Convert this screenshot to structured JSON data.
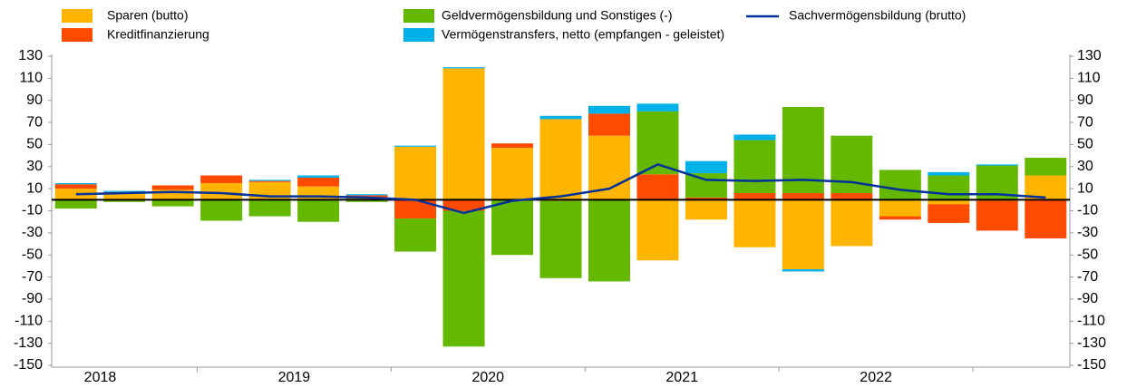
{
  "chart_data": {
    "type": "bar",
    "stacked": true,
    "categories": [
      "2018",
      null,
      null,
      null,
      "2019",
      null,
      null,
      null,
      "2020",
      null,
      null,
      null,
      "2021",
      null,
      null,
      null,
      "2022",
      null,
      null,
      null,
      null
    ],
    "series": [
      {
        "name": "Sparen (butto)",
        "color": "#ffb400",
        "values": [
          10,
          6,
          9,
          15,
          16,
          12,
          2,
          48,
          119,
          47,
          73,
          58,
          -55,
          -18,
          -43,
          -63,
          -42,
          -15,
          -4,
          -1,
          22
        ]
      },
      {
        "name": "Kreditfinanzierung",
        "color": "#ff4b00",
        "values": [
          4,
          1,
          4,
          7,
          1,
          8,
          2,
          -17,
          -10,
          4,
          -1,
          20,
          23,
          2,
          6,
          6,
          6,
          -3,
          -17,
          -27,
          -35
        ]
      },
      {
        "name": "Geldvermögensbildung und Sonstiges (-)",
        "color": "#65b800",
        "values": [
          -8,
          -2,
          -6,
          -19,
          -15,
          -20,
          -2,
          -30,
          -123,
          -50,
          -70,
          -74,
          57,
          22,
          48,
          78,
          52,
          27,
          22,
          31,
          16
        ]
      },
      {
        "name": "Vermögenstransfers, netto (empfangen - geleistet)",
        "color": "#00b1ea",
        "values": [
          1,
          1,
          0,
          0,
          1,
          2,
          1,
          1,
          1,
          0,
          3,
          7,
          7,
          11,
          5,
          -2,
          0,
          0,
          3,
          1,
          0
        ]
      },
      {
        "name": "Sachvermögensbildung (brutto)",
        "color": "#003299",
        "type": "line",
        "values": [
          5,
          6,
          7,
          6,
          3,
          3,
          2,
          0,
          -12,
          -1,
          3,
          10,
          32,
          18,
          17,
          18,
          16,
          9,
          5,
          5,
          2
        ]
      }
    ],
    "ylim": [
      -150,
      130
    ],
    "yticks": [
      -150,
      -130,
      -110,
      -90,
      -70,
      -50,
      -30,
      -10,
      10,
      30,
      50,
      70,
      90,
      110,
      130
    ],
    "grid": false
  }
}
